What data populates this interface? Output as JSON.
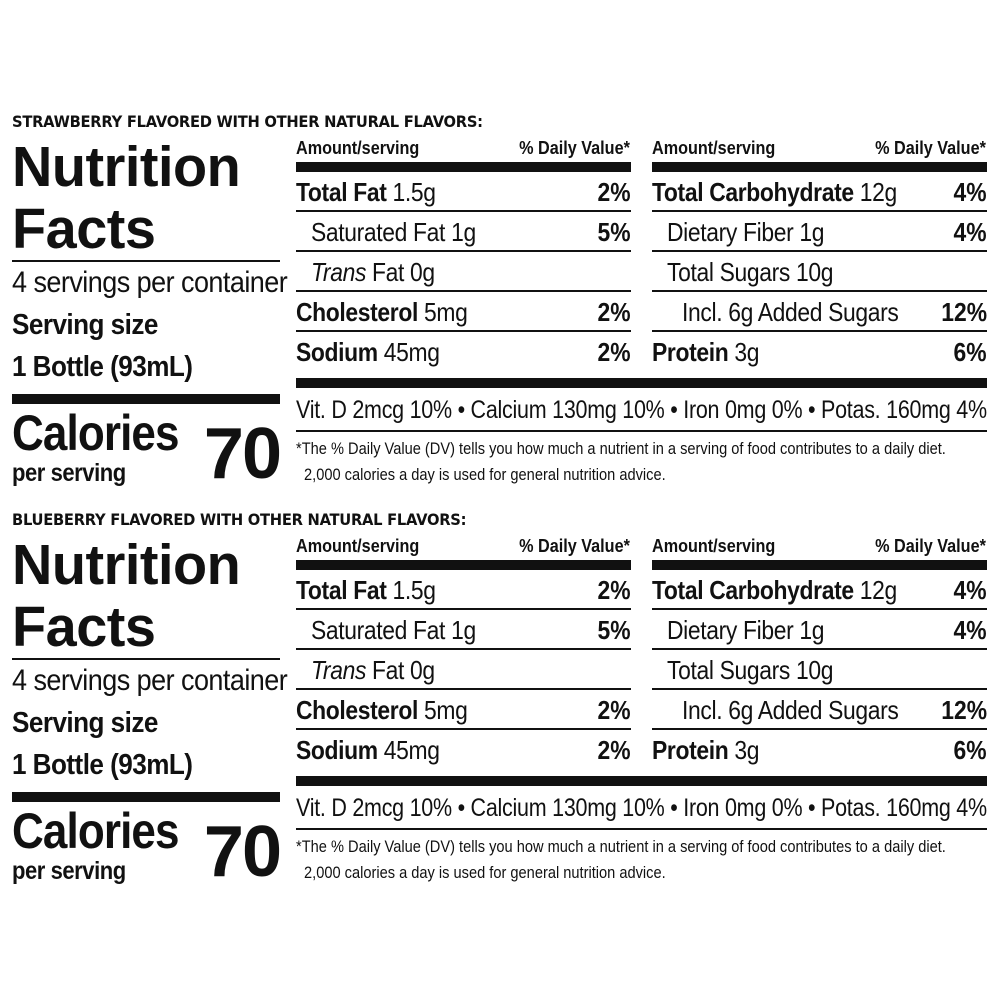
{
  "labels": [
    {
      "flavor": "STRAWBERRY FLAVORED WITH OTHER NATURAL FLAVORS:",
      "title": "Nutrition Facts",
      "title_line1": "Nutrition",
      "title_line2": "Facts",
      "servings_per_container": "4 servings per container",
      "serving_size_label": "Serving size",
      "serving_size_value": "1 Bottle (93mL)",
      "calories_label": "Calories",
      "calories_sub": "per serving",
      "calories_value": "70",
      "left_column": {
        "amount_header": "Amount/serving",
        "dv_header": "% Daily Value*",
        "rows": [
          {
            "name": "Total Fat",
            "amount": "1.5g",
            "pct": "2%"
          },
          {
            "name": "Saturated Fat",
            "amount": "1g",
            "pct": "5%"
          },
          {
            "name": "Trans",
            "amount": "Fat 0g",
            "pct": ""
          },
          {
            "name": "Cholesterol",
            "amount": "5mg",
            "pct": "2%"
          },
          {
            "name": "Sodium",
            "amount": "45mg",
            "pct": "2%"
          }
        ]
      },
      "right_column": {
        "amount_header": "Amount/serving",
        "dv_header": "% Daily Value*",
        "rows": [
          {
            "name": "Total Carbohydrate",
            "amount": "12g",
            "pct": "4%"
          },
          {
            "name": "Dietary Fiber",
            "amount": "1g",
            "pct": "4%"
          },
          {
            "name": "Total Sugars",
            "amount": "10g",
            "pct": ""
          },
          {
            "name": "Incl. 6g Added Sugars",
            "amount": "",
            "pct": "12%"
          },
          {
            "name": "Protein",
            "amount": "3g",
            "pct": "6%"
          }
        ]
      },
      "vitamins": "Vit. D 2mcg 10% • Calcium 130mg 10% • Iron 0mg 0% • Potas. 160mg 4%",
      "footnote_line1": "*The % Daily Value (DV) tells you how much a nutrient in a serving of food contributes to a daily diet.",
      "footnote_line2": "2,000 calories a day is used for general nutrition advice."
    },
    {
      "flavor": "BLUEBERRY FLAVORED WITH OTHER NATURAL FLAVORS:",
      "title": "Nutrition Facts",
      "title_line1": "Nutrition",
      "title_line2": "Facts",
      "servings_per_container": "4 servings per container",
      "serving_size_label": "Serving size",
      "serving_size_value": "1 Bottle (93mL)",
      "calories_label": "Calories",
      "calories_sub": "per serving",
      "calories_value": "70",
      "left_column": {
        "amount_header": "Amount/serving",
        "dv_header": "% Daily Value*",
        "rows": [
          {
            "name": "Total Fat",
            "amount": "1.5g",
            "pct": "2%"
          },
          {
            "name": "Saturated Fat",
            "amount": "1g",
            "pct": "5%"
          },
          {
            "name": "Trans",
            "amount": "Fat 0g",
            "pct": ""
          },
          {
            "name": "Cholesterol",
            "amount": "5mg",
            "pct": "2%"
          },
          {
            "name": "Sodium",
            "amount": "45mg",
            "pct": "2%"
          }
        ]
      },
      "right_column": {
        "amount_header": "Amount/serving",
        "dv_header": "% Daily Value*",
        "rows": [
          {
            "name": "Total Carbohydrate",
            "amount": "12g",
            "pct": "4%"
          },
          {
            "name": "Dietary Fiber",
            "amount": "1g",
            "pct": "4%"
          },
          {
            "name": "Total Sugars",
            "amount": "10g",
            "pct": ""
          },
          {
            "name": "Incl. 6g Added Sugars",
            "amount": "",
            "pct": "12%"
          },
          {
            "name": "Protein",
            "amount": "3g",
            "pct": "6%"
          }
        ]
      },
      "vitamins": "Vit. D 2mcg 10% • Calcium 130mg 10% • Iron 0mg 0% • Potas. 160mg 4%",
      "footnote_line1": "*The % Daily Value (DV) tells you how much a nutrient in a serving of food contributes to a daily diet.",
      "footnote_line2": "2,000 calories a day is used for general nutrition advice."
    }
  ]
}
